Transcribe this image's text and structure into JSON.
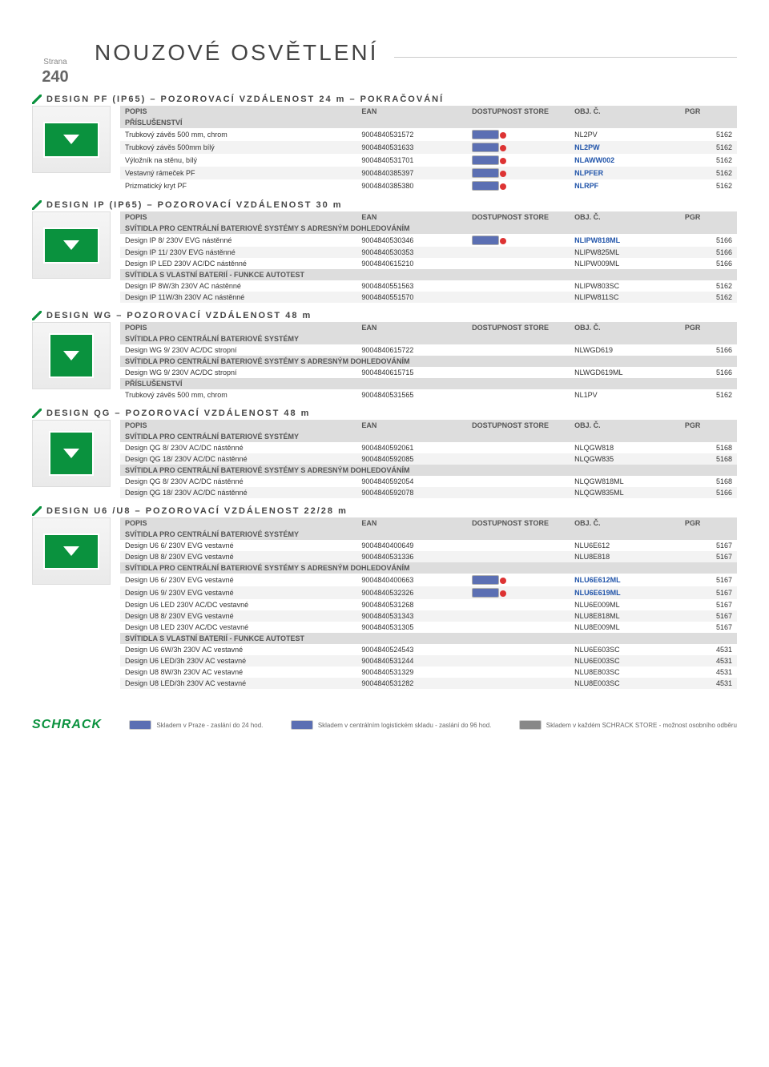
{
  "page_label": "Strana",
  "page_number": "240",
  "main_title": "NOUZOVÉ OSVĚTLENÍ",
  "columns": {
    "c0": "POPIS",
    "c1": "EAN",
    "c2": "DOSTUPNOST STORE",
    "c3": "OBJ. Č.",
    "c4": "PGR"
  },
  "subheads": {
    "prislusenství": "PŘÍSLUŠENSTVÍ",
    "centralni": "SVÍTIDLA PRO CENTRÁLNÍ BATERIOVÉ SYSTÉMY",
    "adresnym": "SVÍTIDLA PRO CENTRÁLNÍ BATERIOVÉ SYSTÉMY S ADRESNÝM DOHLEDOVÁNÍM",
    "autotest": "SVÍTIDLA S VLASTNÍ BATERIÍ - FUNKCE AUTOTEST"
  },
  "sections": [
    {
      "title": "DESIGN PF (IP65) – POZOROVACÍ VZDÁLENOST 24 m – POKRAČOVÁNÍ",
      "thumb": true,
      "groups": [
        {
          "sub": "prislusenství",
          "rows": [
            {
              "d": "Trubkový závěs 500 mm, chrom",
              "e": "9004840531572",
              "i": 1,
              "o": "NL2PV",
              "p": "5162"
            },
            {
              "d": "Trubkový závěs 500mm bílý",
              "e": "9004840531633",
              "i": 1,
              "o": "NL2PW",
              "p": "5162",
              "b": 1
            },
            {
              "d": "Výložník na stěnu, bílý",
              "e": "9004840531701",
              "i": 1,
              "o": "NLAWW002",
              "p": "5162",
              "b": 1
            },
            {
              "d": "Vestavný rámeček PF",
              "e": "9004840385397",
              "i": 1,
              "o": "NLPFER",
              "p": "5162",
              "b": 1
            },
            {
              "d": "Prizmatický kryt PF",
              "e": "9004840385380",
              "i": 1,
              "o": "NLRPF",
              "p": "5162",
              "b": 1
            }
          ]
        }
      ]
    },
    {
      "title": "DESIGN IP (IP65) – POZOROVACÍ VZDÁLENOST 30 m",
      "thumb": true,
      "groups": [
        {
          "sub": "adresnym",
          "head": 1,
          "rows": [
            {
              "d": "Design IP 8/ 230V EVG nástěnné",
              "e": "9004840530346",
              "i": 1,
              "o": "NLIPW818ML",
              "p": "5166",
              "b": 1
            },
            {
              "d": "Design IP 11/ 230V EVG nástěnné",
              "e": "9004840530353",
              "i": 0,
              "o": "NLIPW825ML",
              "p": "5166"
            },
            {
              "d": "Design IP LED 230V AC/DC nástěnné",
              "e": "9004840615210",
              "i": 0,
              "o": "NLIPW009ML",
              "p": "5166"
            }
          ]
        },
        {
          "sub": "autotest",
          "rows": [
            {
              "d": "Design IP 8W/3h 230V AC nástěnné",
              "e": "9004840551563",
              "i": 0,
              "o": "NLIPW803SC",
              "p": "5162"
            },
            {
              "d": "Design IP 11W/3h 230V AC nástěnné",
              "e": "9004840551570",
              "i": 0,
              "o": "NLIPW811SC",
              "p": "5162"
            }
          ]
        }
      ]
    },
    {
      "title": "DESIGN WG – POZOROVACÍ VZDÁLENOST 48 m",
      "thumb": true,
      "groups": [
        {
          "sub": "centralni",
          "head": 1,
          "rows": [
            {
              "d": "Design WG 9/ 230V AC/DC stropní",
              "e": "9004840615722",
              "i": 0,
              "o": "NLWGD619",
              "p": "5166"
            }
          ]
        },
        {
          "sub": "adresnym",
          "rows": [
            {
              "d": "Design WG 9/ 230V AC/DC stropní",
              "e": "9004840615715",
              "i": 0,
              "o": "NLWGD619ML",
              "p": "5166"
            }
          ]
        },
        {
          "sub": "prislusenství",
          "rows": [
            {
              "d": "Trubkový závěs 500 mm, chrom",
              "e": "9004840531565",
              "i": 0,
              "o": "NL1PV",
              "p": "5162"
            }
          ]
        }
      ]
    },
    {
      "title": "DESIGN QG – POZOROVACÍ VZDÁLENOST 48 m",
      "thumb": true,
      "groups": [
        {
          "sub": "centralni",
          "head": 1,
          "rows": [
            {
              "d": "Design QG 8/ 230V AC/DC nástěnné",
              "e": "9004840592061",
              "i": 0,
              "o": "NLQGW818",
              "p": "5168"
            },
            {
              "d": "Design QG 18/ 230V AC/DC nástěnné",
              "e": "9004840592085",
              "i": 0,
              "o": "NLQGW835",
              "p": "5168"
            }
          ]
        },
        {
          "sub": "adresnym",
          "rows": [
            {
              "d": "Design QG 8/ 230V AC/DC nástěnné",
              "e": "9004840592054",
              "i": 0,
              "o": "NLQGW818ML",
              "p": "5168"
            },
            {
              "d": "Design QG 18/ 230V AC/DC nástěnné",
              "e": "9004840592078",
              "i": 0,
              "o": "NLQGW835ML",
              "p": "5166"
            }
          ]
        }
      ]
    },
    {
      "title": "DESIGN U6 /U8 – POZOROVACÍ VZDÁLENOST 22/28 m",
      "thumb": true,
      "groups": [
        {
          "sub": "centralni",
          "head": 1,
          "rows": [
            {
              "d": "Design U6 6/ 230V EVG vestavné",
              "e": "9004840400649",
              "i": 0,
              "o": "NLU6E612",
              "p": "5167"
            },
            {
              "d": "Design U8 8/ 230V EVG vestavné",
              "e": "9004840531336",
              "i": 0,
              "o": "NLU8E818",
              "p": "5167"
            }
          ]
        },
        {
          "sub": "adresnym",
          "rows": [
            {
              "d": "Design U6 6/ 230V EVG vestavné",
              "e": "9004840400663",
              "i": 1,
              "o": "NLU6E612ML",
              "p": "5167",
              "b": 1
            },
            {
              "d": "Design U6 9/ 230V EVG vestavné",
              "e": "9004840532326",
              "i": 1,
              "o": "NLU6E619ML",
              "p": "5167",
              "b": 1
            },
            {
              "d": "Design U6 LED 230V AC/DC vestavné",
              "e": "9004840531268",
              "i": 0,
              "o": "NLU6E009ML",
              "p": "5167"
            },
            {
              "d": "Design U8 8/ 230V EVG vestavné",
              "e": "9004840531343",
              "i": 0,
              "o": "NLU8E818ML",
              "p": "5167"
            },
            {
              "d": "Design U8 LED 230V AC/DC vestavné",
              "e": "9004840531305",
              "i": 0,
              "o": "NLU8E009ML",
              "p": "5167"
            }
          ]
        },
        {
          "sub": "autotest",
          "rows": [
            {
              "d": "Design U6 6W/3h 230V AC vestavné",
              "e": "9004840524543",
              "i": 0,
              "o": "NLU6E603SC",
              "p": "4531"
            },
            {
              "d": "Design U6 LED/3h 230V AC vestavné",
              "e": "9004840531244",
              "i": 0,
              "o": "NLU6E003SC",
              "p": "4531"
            },
            {
              "d": "Design U8 8W/3h 230V AC vestavné",
              "e": "9004840531329",
              "i": 0,
              "o": "NLU8E803SC",
              "p": "4531"
            },
            {
              "d": "Design U8 LED/3h 230V AC vestavné",
              "e": "9004840531282",
              "i": 0,
              "o": "NLU8E003SC",
              "p": "4531"
            }
          ]
        }
      ]
    }
  ],
  "footer": {
    "logo": "SCHRACK",
    "f1": "Skladem v Praze - zaslání do 24 hod.",
    "f2": "Skladem v centrálním logistickém skladu - zaslání do 96 hod.",
    "f3": "Skladem v každém SCHRACK STORE - možnost osobního odběru"
  }
}
